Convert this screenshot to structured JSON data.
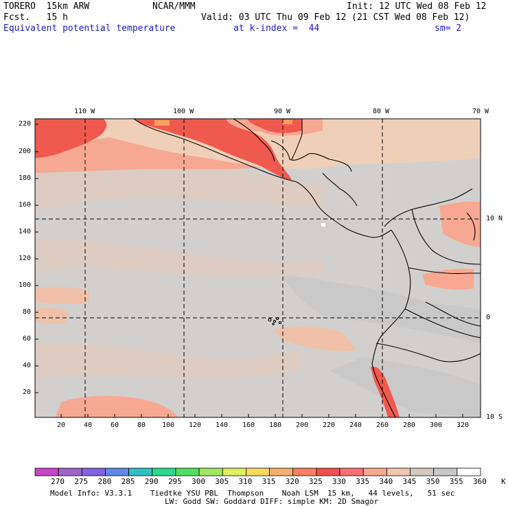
{
  "header": {
    "model": "TORERO  15km ARW",
    "center": "NCAR/MMM",
    "init": "Init: 12 UTC Wed 08 Feb 12",
    "fcst": "Fcst.   15 h",
    "valid": "Valid: 03 UTC Thu 09 Feb 12 (21 CST Wed 08 Feb 12)",
    "field": "Equivalent potential temperature",
    "level": "at k-index =  44",
    "smooth": "sm= 2"
  },
  "axes": {
    "top_lon": [
      "110 W",
      "100 W",
      "90 W",
      "80 W",
      "70 W"
    ],
    "right_lat": [
      "10 N",
      "0",
      "10 S"
    ],
    "left_grid": [
      "220",
      "200",
      "180",
      "160",
      "140",
      "120",
      "100",
      "80",
      "60",
      "40",
      "20"
    ],
    "bottom_grid": [
      "20",
      "40",
      "60",
      "80",
      "100",
      "120",
      "140",
      "160",
      "180",
      "200",
      "220",
      "240",
      "260",
      "280",
      "300",
      "320"
    ]
  },
  "colorbar": {
    "labels": [
      "270",
      "275",
      "280",
      "285",
      "290",
      "295",
      "300",
      "305",
      "310",
      "315",
      "320",
      "325",
      "330",
      "335",
      "340",
      "345",
      "350",
      "355",
      "360",
      "K"
    ],
    "colors": [
      "#c844c8",
      "#a064c8",
      "#8064e0",
      "#6088e8",
      "#30c0c0",
      "#30d890",
      "#50e060",
      "#a0e860",
      "#e0f060",
      "#f8d860",
      "#f8b070",
      "#f88060",
      "#f05050",
      "#f87070",
      "#f8a890",
      "#f0c8b0",
      "#d8c8c0",
      "#c8c8c8",
      "#ffffff"
    ]
  },
  "footer": {
    "line1": "Model Info: V3.3.1    Tiedtke YSU PBL  Thompson    Noah LSM  15 km,   44 levels,   51 sec",
    "line2": "LW: Godd SW: Goddard DIFF: simple KM: 2D Smagor"
  }
}
